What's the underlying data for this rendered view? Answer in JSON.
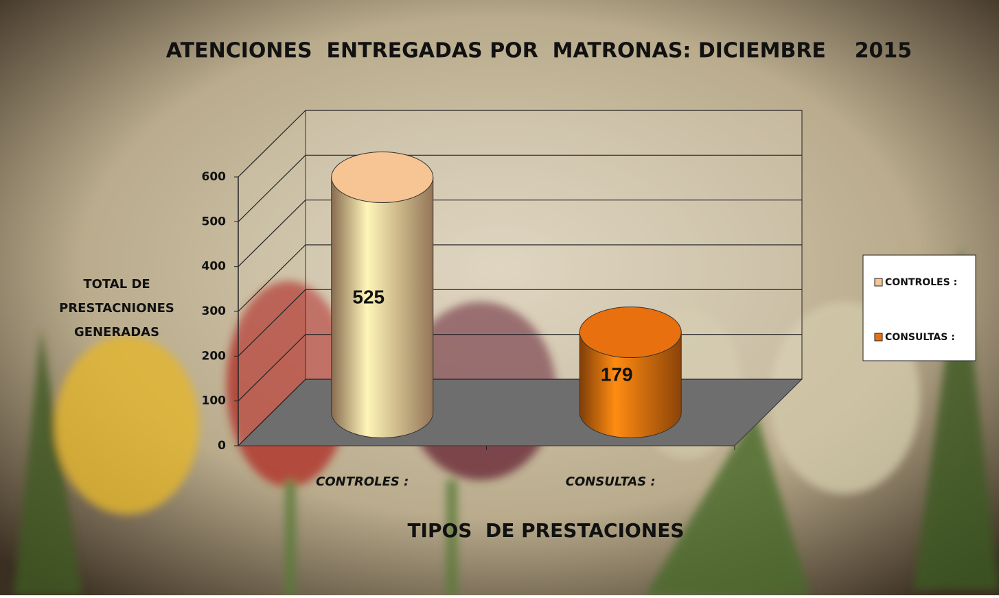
{
  "chart_data": {
    "type": "bar3d",
    "title": "ATENCIONES  ENTREGADAS POR  MATRONAS: DICIEMBRE    2015",
    "ylabel": [
      "TOTAL DE",
      "PRESTACNIONES",
      "GENERADAS"
    ],
    "xlabel": "TIPOS  DE PRESTACIONES",
    "categories": [
      "CONTROLES :",
      "CONSULTAS :"
    ],
    "values": [
      525,
      179
    ],
    "colors": [
      "#f7c493",
      "#e8700e"
    ],
    "ylim": [
      0,
      600
    ],
    "yticks": [
      0,
      100,
      200,
      300,
      400,
      500,
      600
    ],
    "grid": true,
    "legend": "right"
  }
}
